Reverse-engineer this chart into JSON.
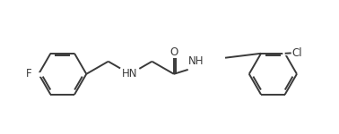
{
  "bg_color": "#ffffff",
  "bond_color": "#3a3a3a",
  "atom_label_color": "#3a3a3a",
  "line_width": 1.4,
  "font_size": 8.5,
  "fig_width": 3.78,
  "fig_height": 1.5,
  "dpi": 100,
  "xlim": [
    0,
    9.5
  ],
  "ylim": [
    0,
    3.8
  ]
}
